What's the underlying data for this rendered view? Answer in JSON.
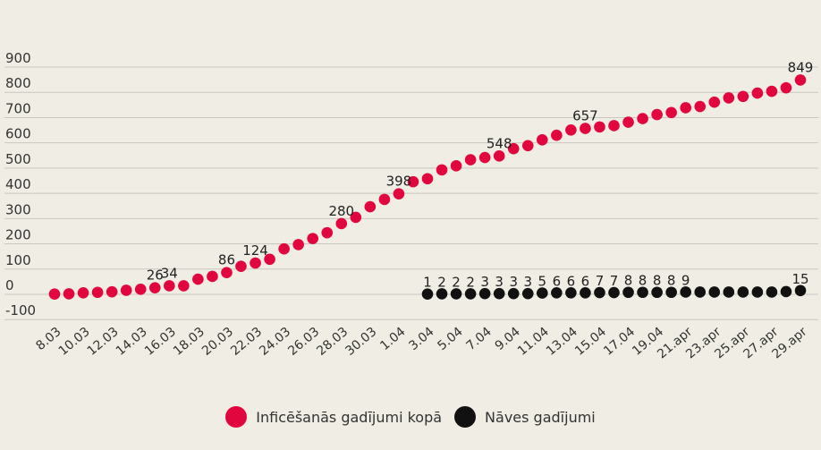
{
  "colors": {
    "infections": "#e2063e",
    "deaths": "#111111",
    "grid": "#c9c7bf",
    "text": "#333333",
    "background": "#efede4"
  },
  "chart_data": {
    "type": "scatter",
    "title": "",
    "xlabel": "",
    "ylabel": "",
    "ylim": [
      -100,
      900
    ],
    "yticks": [
      -100,
      0,
      100,
      200,
      300,
      400,
      500,
      600,
      700,
      800,
      900
    ],
    "grid": true,
    "legend_position": "bottom",
    "x_tick_labels": [
      "8.03",
      "10.03",
      "12.03",
      "14.03",
      "16.03",
      "18.03",
      "20.03",
      "22.03",
      "24.03",
      "26.03",
      "28.03",
      "30.03",
      "1.04",
      "3.04",
      "5.04",
      "7.04",
      "9.04",
      "11.04",
      "13.04",
      "15.04",
      "17.04",
      "19.04",
      "21.apr",
      "23.apr",
      "25.apr",
      "27.apr",
      "29.apr"
    ],
    "x": [
      "8.03",
      "9.03",
      "10.03",
      "11.03",
      "12.03",
      "13.03",
      "14.03",
      "15.03",
      "16.03",
      "17.03",
      "18.03",
      "19.03",
      "20.03",
      "21.03",
      "22.03",
      "23.03",
      "24.03",
      "25.03",
      "26.03",
      "27.03",
      "28.03",
      "29.03",
      "30.03",
      "31.03",
      "1.04",
      "2.04",
      "3.04",
      "4.04",
      "5.04",
      "6.04",
      "7.04",
      "8.04",
      "9.04",
      "10.04",
      "11.04",
      "12.04",
      "13.04",
      "14.04",
      "15.04",
      "16.04",
      "17.04",
      "18.04",
      "19.04",
      "20.04",
      "21.apr",
      "22.apr",
      "23.apr",
      "24.apr",
      "25.apr",
      "26.apr",
      "27.apr",
      "28.apr",
      "29.apr"
    ],
    "series": [
      {
        "name": "Inficēšanās gadījumi kopā",
        "color": "#e2063e",
        "values": [
          1,
          2,
          6,
          8,
          10,
          16,
          20,
          26,
          34,
          34,
          60,
          71,
          86,
          111,
          124,
          139,
          180,
          197,
          221,
          244,
          280,
          305,
          347,
          376,
          398,
          446,
          458,
          493,
          509,
          533,
          542,
          548,
          577,
          589,
          612,
          630,
          651,
          657,
          663,
          668,
          682,
          696,
          712,
          720,
          739,
          744,
          761,
          778,
          784,
          797,
          804,
          818,
          849
        ],
        "labels": {
          "7": "26",
          "8": "34",
          "12": "86",
          "14": "124",
          "20": "280",
          "24": "398",
          "31": "548",
          "37": "657",
          "52": "849"
        }
      },
      {
        "name": "Nāves gadījumi",
        "color": "#111111",
        "start_index": 26,
        "values": [
          1,
          2,
          2,
          2,
          3,
          3,
          3,
          3,
          5,
          6,
          6,
          6,
          7,
          7,
          8,
          8,
          8,
          8,
          9,
          9,
          9,
          9,
          9,
          9,
          9,
          11,
          15
        ],
        "labels": {
          "0": "1",
          "1": "2",
          "2": "2",
          "3": "2",
          "4": "3",
          "5": "3",
          "6": "3",
          "7": "3",
          "8": "5",
          "9": "6",
          "10": "6",
          "11": "6",
          "12": "7",
          "13": "7",
          "14": "8",
          "15": "8",
          "16": "8",
          "17": "8",
          "18": "9",
          "26": "15"
        }
      }
    ]
  },
  "legend": {
    "infections_label": "Inficēšanās gadījumi kopā",
    "deaths_label": "Nāves gadījumi"
  }
}
